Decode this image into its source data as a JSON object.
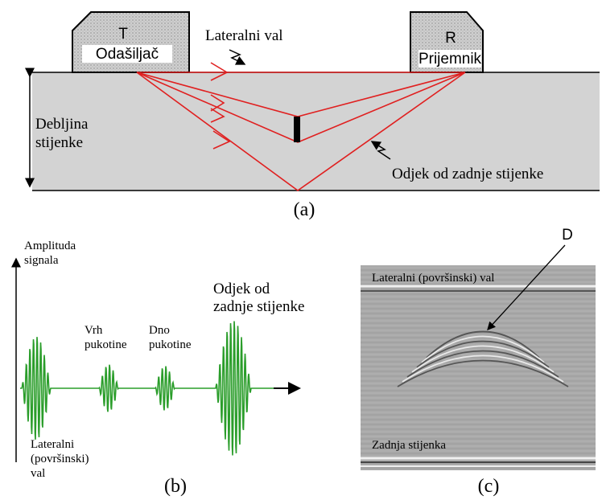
{
  "panel_a": {
    "transmitter": {
      "letter": "T",
      "label": "Odašiljač"
    },
    "receiver": {
      "letter": "R",
      "label": "Prijemnik"
    },
    "lateral_wave": "Lateralni val",
    "thickness": [
      "Debljina",
      "stijenke"
    ],
    "back_wall_echo": "Odjek od zadnje stijenke",
    "caption": "(a)"
  },
  "panel_b": {
    "axis_label": [
      "Amplituda",
      "signala"
    ],
    "crack_top": [
      "Vrh",
      "pukotine"
    ],
    "crack_bottom": [
      "Dno",
      "pukotine"
    ],
    "back_wall_echo": [
      "Odjek od",
      "zadnje stijenke"
    ],
    "lateral_wave": [
      "Lateralni",
      "(površinski)",
      "val"
    ],
    "caption": "(b)"
  },
  "panel_c": {
    "defect": "D",
    "lateral_wave": "Lateralni (površinski) val",
    "back_wall": "Zadnja stijenka",
    "caption": "(c)"
  }
}
